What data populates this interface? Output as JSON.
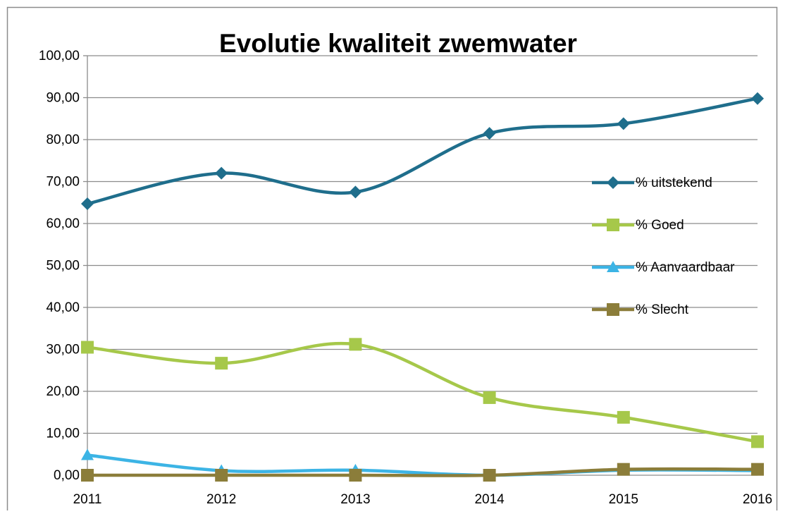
{
  "chart_data": {
    "type": "line",
    "title": "Evolutie kwaliteit zwemwater",
    "categories": [
      "2011",
      "2012",
      "2013",
      "2014",
      "2015",
      "2016"
    ],
    "series": [
      {
        "name": "% uitstekend",
        "color": "#1f6e8c",
        "marker": "diamond",
        "values": [
          64.7,
          72.0,
          67.5,
          81.5,
          83.8,
          89.8
        ]
      },
      {
        "name": "% Goed",
        "color": "#a6c84a",
        "marker": "square",
        "values": [
          30.5,
          26.7,
          31.2,
          18.5,
          13.8,
          8.0
        ]
      },
      {
        "name": "% Aanvaardbaar",
        "color": "#3cb4e5",
        "marker": "triangle",
        "values": [
          4.8,
          1.1,
          1.2,
          0,
          1.2,
          1.1
        ]
      },
      {
        "name": "% Slecht",
        "color": "#8b7d3a",
        "marker": "square",
        "values": [
          0,
          0,
          0,
          0,
          1.4,
          1.4
        ]
      }
    ],
    "ylim": [
      0,
      100
    ],
    "yticks": [
      {
        "value": 0,
        "label": "0,00"
      },
      {
        "value": 10,
        "label": "10,00"
      },
      {
        "value": 20,
        "label": "20,00"
      },
      {
        "value": 30,
        "label": "30,00"
      },
      {
        "value": 40,
        "label": "40,00"
      },
      {
        "value": 50,
        "label": "50,00"
      },
      {
        "value": 60,
        "label": "60,00"
      },
      {
        "value": 70,
        "label": "70,00"
      },
      {
        "value": 80,
        "label": "80,00"
      },
      {
        "value": 90,
        "label": "90,00"
      },
      {
        "value": 100,
        "label": "100,00"
      }
    ],
    "grid": true,
    "smooth": true,
    "legend": "right"
  }
}
